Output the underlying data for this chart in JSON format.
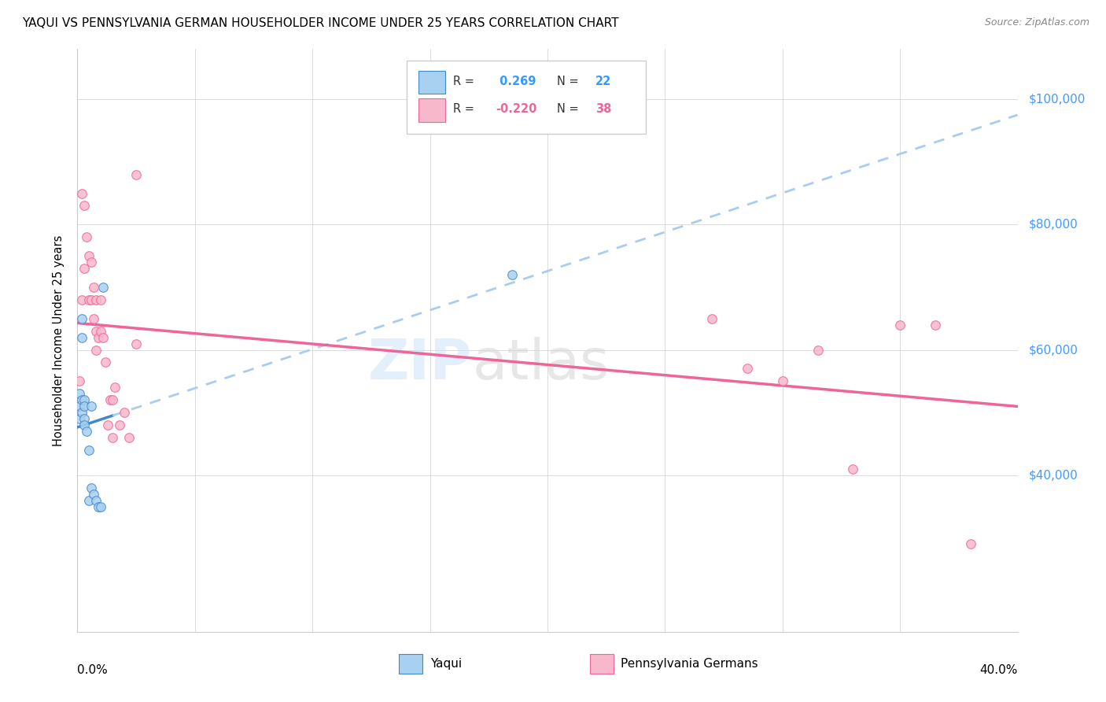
{
  "title": "YAQUI VS PENNSYLVANIA GERMAN HOUSEHOLDER INCOME UNDER 25 YEARS CORRELATION CHART",
  "source": "Source: ZipAtlas.com",
  "ylabel": "Householder Income Under 25 years",
  "y_tick_labels": [
    "$40,000",
    "$60,000",
    "$80,000",
    "$100,000"
  ],
  "y_tick_values": [
    40000,
    60000,
    80000,
    100000
  ],
  "xlim": [
    0.0,
    0.4
  ],
  "ylim": [
    15000,
    108000
  ],
  "legend_r_yaqui": "0.269",
  "legend_n_yaqui": "22",
  "legend_r_pg": "-0.220",
  "legend_n_pg": "38",
  "color_yaqui": "#a8d0f0",
  "color_pg": "#f8b8cc",
  "line_color_yaqui": "#4488cc",
  "line_color_pg": "#ee6699",
  "line_color_yaqui_dash": "#aaccee",
  "yaqui_x": [
    0.001,
    0.001,
    0.001,
    0.002,
    0.002,
    0.002,
    0.002,
    0.003,
    0.003,
    0.003,
    0.003,
    0.004,
    0.005,
    0.005,
    0.006,
    0.006,
    0.007,
    0.008,
    0.009,
    0.01,
    0.011,
    0.185
  ],
  "yaqui_y": [
    53000,
    51000,
    49000,
    65000,
    62000,
    52000,
    50000,
    52000,
    51000,
    49000,
    48000,
    47000,
    44000,
    36000,
    51000,
    38000,
    37000,
    36000,
    35000,
    35000,
    70000,
    72000
  ],
  "pg_x": [
    0.001,
    0.002,
    0.002,
    0.003,
    0.003,
    0.004,
    0.005,
    0.005,
    0.006,
    0.006,
    0.007,
    0.007,
    0.008,
    0.008,
    0.008,
    0.009,
    0.01,
    0.01,
    0.011,
    0.012,
    0.013,
    0.014,
    0.015,
    0.015,
    0.016,
    0.018,
    0.02,
    0.022,
    0.025,
    0.025,
    0.27,
    0.285,
    0.3,
    0.315,
    0.33,
    0.35,
    0.365,
    0.38
  ],
  "pg_y": [
    55000,
    85000,
    68000,
    83000,
    73000,
    78000,
    75000,
    68000,
    74000,
    68000,
    70000,
    65000,
    68000,
    63000,
    60000,
    62000,
    68000,
    63000,
    62000,
    58000,
    48000,
    52000,
    46000,
    52000,
    54000,
    48000,
    50000,
    46000,
    61000,
    88000,
    65000,
    57000,
    55000,
    60000,
    41000,
    64000,
    64000,
    29000
  ]
}
